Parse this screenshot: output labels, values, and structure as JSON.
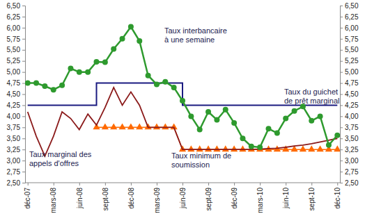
{
  "chart_data": {
    "type": "line",
    "categories": [
      "déc-07",
      null,
      null,
      "mars-08",
      null,
      null,
      "juin-08",
      null,
      null,
      "sept-08",
      null,
      null,
      "déc-08",
      null,
      null,
      "mars-09",
      null,
      null,
      "juin-09",
      null,
      null,
      "sept-09",
      null,
      null,
      "déc-09",
      null,
      null,
      "mars-10",
      null,
      null,
      "juin-10",
      null,
      null,
      "sept-10",
      null,
      null,
      "déc-10"
    ],
    "series": [
      {
        "name": "Taux interbancaire à une semaine",
        "color": "#2e9a2e",
        "marker": "circle",
        "line_style": "solid",
        "values": [
          4.75,
          4.75,
          4.68,
          4.6,
          4.7,
          5.08,
          5.0,
          5.0,
          5.23,
          5.22,
          5.52,
          5.75,
          6.02,
          5.7,
          4.92,
          4.72,
          4.78,
          4.65,
          4.35,
          4.0,
          3.7,
          4.1,
          3.92,
          4.15,
          3.85,
          3.5,
          3.32,
          3.3,
          3.72,
          3.62,
          3.95,
          4.12,
          4.22,
          3.9,
          4.0,
          3.35,
          3.57
        ]
      },
      {
        "name": "Taux du guichet de prêt marginal",
        "color": "#1a1a80",
        "line_style": "step",
        "values": [
          4.25,
          4.25,
          4.25,
          4.25,
          4.25,
          4.25,
          4.25,
          4.25,
          4.75,
          4.75,
          4.75,
          4.75,
          4.75,
          4.75,
          4.75,
          4.75,
          4.75,
          4.75,
          4.25,
          4.25,
          4.25,
          4.25,
          4.25,
          4.25,
          4.25,
          4.25,
          4.25,
          4.25,
          4.25,
          4.25,
          4.25,
          4.25,
          4.25,
          4.25,
          4.25,
          4.25,
          4.25
        ]
      },
      {
        "name": "Taux marginal des appels d'offres",
        "color": "#8b1a1a",
        "line_style": "solid",
        "values": [
          4.1,
          3.55,
          3.1,
          3.55,
          4.1,
          3.95,
          3.7,
          4.05,
          3.8,
          4.2,
          4.65,
          4.25,
          4.55,
          4.25,
          3.75,
          3.75,
          3.75,
          3.75,
          3.25,
          3.25,
          3.25,
          3.25,
          3.25,
          3.25,
          3.25,
          3.25,
          3.25,
          3.26,
          3.27,
          3.28,
          3.3,
          3.33,
          3.35,
          3.38,
          3.42,
          3.46,
          3.5
        ]
      },
      {
        "name": "Taux minimum de soumission",
        "color": "#ff6a00",
        "marker": "triangle",
        "line_style": "solid",
        "values": [
          null,
          null,
          null,
          null,
          null,
          null,
          null,
          null,
          3.75,
          3.75,
          3.75,
          3.75,
          3.75,
          3.75,
          3.75,
          3.75,
          3.75,
          3.75,
          3.25,
          3.25,
          3.25,
          3.25,
          3.25,
          3.25,
          3.25,
          3.25,
          3.25,
          3.25,
          3.25,
          3.25,
          3.25,
          3.25,
          3.25,
          3.25,
          3.25,
          3.25,
          3.25
        ]
      }
    ],
    "ylim": [
      2.5,
      6.5
    ],
    "yticks": [
      {
        "value": 2.5,
        "label": "2,50"
      },
      {
        "value": 2.75,
        "label": "2,75"
      },
      {
        "value": 3,
        "label": "3,00"
      },
      {
        "value": 3.25,
        "label": "3,25"
      },
      {
        "value": 3.5,
        "label": "3,50"
      },
      {
        "value": 3.75,
        "label": "3,75"
      },
      {
        "value": 4,
        "label": "4,00"
      },
      {
        "value": 4.25,
        "label": "4,25"
      },
      {
        "value": 4.5,
        "label": "4,50"
      },
      {
        "value": 4.75,
        "label": "4,75"
      },
      {
        "value": 5,
        "label": "5,00"
      },
      {
        "value": 5.25,
        "label": "5,25"
      },
      {
        "value": 5.5,
        "label": "5,50"
      },
      {
        "value": 5.75,
        "label": "5,75"
      },
      {
        "value": 6,
        "label": "6,00"
      },
      {
        "value": 6.25,
        "label": "6,25"
      },
      {
        "value": 6.5,
        "label": "6,50"
      }
    ],
    "y2lim": [
      2.5,
      6.5
    ],
    "y2ticks": [
      {
        "value": 2.5,
        "label": "2,50"
      },
      {
        "value": 2.75,
        "label": "2,75"
      },
      {
        "value": 3,
        "label": "3,00"
      },
      {
        "value": 3.25,
        "label": "3,25"
      },
      {
        "value": 3.5,
        "label": "3,50"
      },
      {
        "value": 3.75,
        "label": "3,75"
      },
      {
        "value": 4,
        "label": "4,00"
      },
      {
        "value": 4.25,
        "label": "4,25"
      },
      {
        "value": 4.5,
        "label": "4,50"
      },
      {
        "value": 4.75,
        "label": "4,75"
      },
      {
        "value": 5,
        "label": "5,00"
      },
      {
        "value": 5.25,
        "label": "5,25"
      },
      {
        "value": 5.5,
        "label": "5,50"
      },
      {
        "value": 5.75,
        "label": "5,75"
      },
      {
        "value": 6,
        "label": "6,00"
      },
      {
        "value": 6.25,
        "label": "6,25"
      },
      {
        "value": 6.5,
        "label": "6,50"
      }
    ],
    "grid": false
  }
}
